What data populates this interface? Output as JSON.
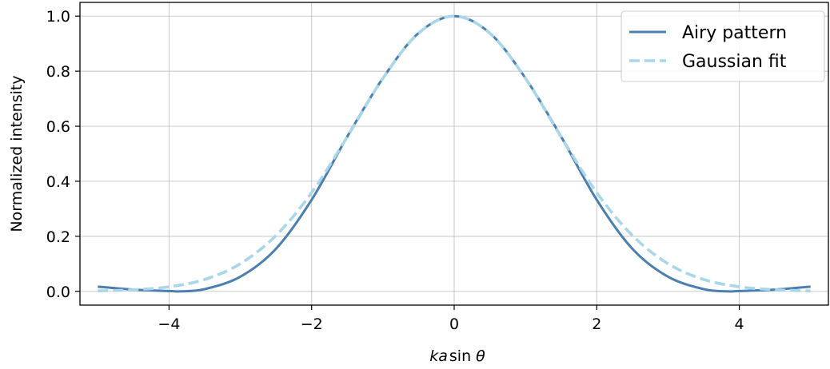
{
  "chart_data": {
    "type": "line",
    "title": "",
    "xlabel": "ka sin θ",
    "xlabel_parts": {
      "italic": "ka",
      "func": "sin",
      "symbol": "θ"
    },
    "ylabel": "Normalized intensity",
    "xlim": [
      -5.25,
      5.25
    ],
    "ylim": [
      -0.05,
      1.05
    ],
    "xticks": [
      -4,
      -2,
      0,
      2,
      4
    ],
    "xtick_labels": [
      "−4",
      "−2",
      "0",
      "2",
      "4"
    ],
    "yticks": [
      0.0,
      0.2,
      0.4,
      0.6,
      0.8,
      1.0
    ],
    "ytick_labels": [
      "0.0",
      "0.2",
      "0.4",
      "0.6",
      "0.8",
      "1.0"
    ],
    "grid": true,
    "legend_position": "top-right",
    "series": [
      {
        "name": "Airy pattern",
        "color": "#4a7fb0",
        "style": "solid",
        "x": [
          -5.0,
          -4.5,
          -4.0,
          -3.8317,
          -3.5,
          -3.0,
          -2.5,
          -2.0,
          -1.5,
          -1.0,
          -0.5,
          0.0,
          0.5,
          1.0,
          1.5,
          2.0,
          2.5,
          3.0,
          3.5,
          3.8317,
          4.0,
          4.5,
          5.0
        ],
        "y": [
          0.0171,
          0.0061,
          0.0012,
          0.0,
          0.0081,
          0.0532,
          0.1547,
          0.3326,
          0.5622,
          0.7746,
          0.9385,
          1.0,
          0.9385,
          0.7746,
          0.5622,
          0.3326,
          0.1547,
          0.0532,
          0.0081,
          0.0,
          0.0012,
          0.0061,
          0.0171
        ]
      },
      {
        "name": "Gaussian fit",
        "color": "#a9d6e8",
        "style": "dashed",
        "x": [
          -5.0,
          -4.5,
          -4.0,
          -3.5,
          -3.0,
          -2.5,
          -2.0,
          -1.5,
          -1.0,
          -0.5,
          0.0,
          0.5,
          1.0,
          1.5,
          2.0,
          2.5,
          3.0,
          3.5,
          4.0,
          4.5,
          5.0
        ],
        "y": [
          0.0017,
          0.0057,
          0.0166,
          0.0432,
          0.1004,
          0.2029,
          0.3588,
          0.5615,
          0.774,
          0.9379,
          1.0,
          0.9379,
          0.774,
          0.5615,
          0.3588,
          0.2029,
          0.1004,
          0.0432,
          0.0166,
          0.0057,
          0.0017
        ]
      }
    ]
  }
}
